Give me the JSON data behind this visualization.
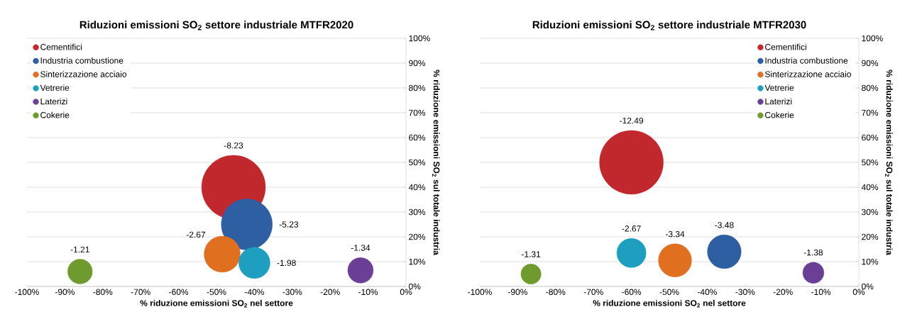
{
  "chart_data": [
    {
      "type": "bubble",
      "title": "Riduzioni emissioni SO$_{2}$ settore industriale MTFR2020",
      "xlabel": "% riduzione emissioni SO$_{2}$ nel settore",
      "ylabel": "% riduzione emissioni SO$_{2}$ sul totale industria",
      "series": [
        {
          "name": "Cementifici",
          "color": "#c0282e",
          "x": [
            -45.5
          ],
          "values": [
            40
          ],
          "sizes": [
            1
          ]
        },
        {
          "name": "Industria combustione",
          "color": "#2e5fa3",
          "x": [
            -42
          ],
          "values": [
            25
          ],
          "sizes": [
            0.64
          ]
        },
        {
          "name": "Sinterizzazione acciaio",
          "color": "#e07020",
          "x": [
            -48.5
          ],
          "values": [
            13
          ],
          "sizes": [
            0.32
          ]
        },
        {
          "name": "Vetrerie",
          "color": "#1f9fbf",
          "x": [
            -40
          ],
          "values": [
            9.5
          ],
          "sizes": [
            0.24
          ]
        },
        {
          "name": "Laterizi",
          "color": "#6b3f95",
          "x": [
            -12
          ],
          "values": [
            6.5
          ],
          "sizes": [
            0.16
          ]
        },
        {
          "name": "Cokerie",
          "color": "#6f9a2e",
          "x": [
            -86
          ],
          "values": [
            6
          ],
          "sizes": [
            0.15
          ]
        }
      ],
      "annotations": [
        "-8.23",
        "-5.23",
        "-2.67",
        "-1.98",
        "-1.34",
        "-1.21"
      ],
      "xlim": [
        -100,
        0
      ],
      "ylim": [
        0,
        100
      ],
      "xticks": [
        {
          "value": -100,
          "label": "-100%"
        },
        {
          "value": -90,
          "label": "-90%"
        },
        {
          "value": -80,
          "label": "-80%"
        },
        {
          "value": -70,
          "label": "-70%"
        },
        {
          "value": -60,
          "label": "-60%"
        },
        {
          "value": -50,
          "label": "-50%"
        },
        {
          "value": -40,
          "label": "-40%"
        },
        {
          "value": -30,
          "label": "-30%"
        },
        {
          "value": -20,
          "label": "-20%"
        },
        {
          "value": -10,
          "label": "-10%"
        },
        {
          "value": 0,
          "label": "0%"
        }
      ],
      "yticks": [
        {
          "value": 0,
          "label": "0%"
        },
        {
          "value": 10,
          "label": "10%"
        },
        {
          "value": 20,
          "label": "20%"
        },
        {
          "value": 30,
          "label": "30%"
        },
        {
          "value": 40,
          "label": "40%"
        },
        {
          "value": 50,
          "label": "50%"
        },
        {
          "value": 60,
          "label": "60%"
        },
        {
          "value": 70,
          "label": "70%"
        },
        {
          "value": 80,
          "label": "80%"
        },
        {
          "value": 90,
          "label": "90%"
        },
        {
          "value": 100,
          "label": "100%"
        }
      ],
      "grid": "y",
      "legend": "top left"
    },
    {
      "type": "bubble",
      "title": "Riduzioni emissioni SO$_{2}$ settore industriale MTFR2030",
      "xlabel": "% riduzione emissioni SO$_{2}$ nel settore",
      "ylabel": "% riduzione emissioni SO$_{2}$ sul totale industria",
      "series": [
        {
          "name": "Cementifici",
          "color": "#c0282e",
          "x": [
            -60
          ],
          "values": [
            50
          ],
          "sizes": [
            1
          ]
        },
        {
          "name": "Industria combustione",
          "color": "#2e5fa3",
          "x": [
            -35.5
          ],
          "values": [
            14
          ],
          "sizes": [
            0.28
          ]
        },
        {
          "name": "Sinterizzazione acciaio",
          "color": "#e07020",
          "x": [
            -48.5
          ],
          "values": [
            10.5
          ],
          "sizes": [
            0.27
          ]
        },
        {
          "name": "Vetrerie",
          "color": "#1f9fbf",
          "x": [
            -60
          ],
          "values": [
            13.5
          ],
          "sizes": [
            0.21
          ]
        },
        {
          "name": "Laterizi",
          "color": "#6b3f95",
          "x": [
            -12
          ],
          "values": [
            5.5
          ],
          "sizes": [
            0.11
          ]
        },
        {
          "name": "Cokerie",
          "color": "#6f9a2e",
          "x": [
            -86.5
          ],
          "values": [
            5
          ],
          "sizes": [
            0.1
          ]
        }
      ],
      "annotations": [
        "-12.49",
        "-3.48",
        "-3.34",
        "-2.67",
        "-1.38",
        "-1.31"
      ],
      "xlim": [
        -100,
        0
      ],
      "ylim": [
        0,
        100
      ],
      "xticks": [
        {
          "value": -100,
          "label": "-100%"
        },
        {
          "value": -90,
          "label": "-90%"
        },
        {
          "value": -80,
          "label": "-80%"
        },
        {
          "value": -70,
          "label": "-70%"
        },
        {
          "value": -60,
          "label": "-60%"
        },
        {
          "value": -50,
          "label": "-50%"
        },
        {
          "value": -40,
          "label": "-40%"
        },
        {
          "value": -30,
          "label": "-30%"
        },
        {
          "value": -20,
          "label": "-20%"
        },
        {
          "value": -10,
          "label": "-10%"
        },
        {
          "value": 0,
          "label": "0%"
        }
      ],
      "yticks": [
        {
          "value": 0,
          "label": "0%"
        },
        {
          "value": 10,
          "label": "10%"
        },
        {
          "value": 20,
          "label": "20%"
        },
        {
          "value": 30,
          "label": "30%"
        },
        {
          "value": 40,
          "label": "40%"
        },
        {
          "value": 50,
          "label": "50%"
        },
        {
          "value": 60,
          "label": "60%"
        },
        {
          "value": 70,
          "label": "70%"
        },
        {
          "value": 80,
          "label": "80%"
        },
        {
          "value": 90,
          "label": "90%"
        },
        {
          "value": 100,
          "label": "100%"
        }
      ],
      "grid": "y",
      "legend": "top right"
    }
  ]
}
